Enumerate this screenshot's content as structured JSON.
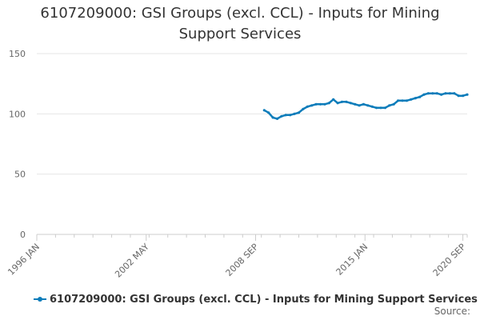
{
  "chart_data": {
    "type": "line",
    "title": "6107209000: GSI Groups (excl. CCL) - Inputs for Mining Support Services",
    "xlabel": "",
    "ylabel": "",
    "x_tick_labels": [
      "1996 JAN",
      "2002 MAY",
      "2008 SEP",
      "2015 JAN",
      "2020 SEP"
    ],
    "y_ticks": [
      0,
      50,
      100,
      150
    ],
    "ylim": [
      0,
      160
    ],
    "xlim": [
      "1996-01",
      "2020-12"
    ],
    "grid": "horizontal",
    "legend_position": "bottom",
    "series": [
      {
        "name": "6107209000: GSI Groups (excl. CCL) - Inputs for Mining Support Services",
        "color": "#0c7cba",
        "x": [
          "2009-03",
          "2009-06",
          "2009-09",
          "2009-12",
          "2010-03",
          "2010-06",
          "2010-09",
          "2010-12",
          "2011-03",
          "2011-06",
          "2011-09",
          "2011-12",
          "2012-03",
          "2012-06",
          "2012-09",
          "2012-12",
          "2013-03",
          "2013-06",
          "2013-09",
          "2013-12",
          "2014-03",
          "2014-06",
          "2014-09",
          "2014-12",
          "2015-03",
          "2015-06",
          "2015-09",
          "2015-12",
          "2016-03",
          "2016-06",
          "2016-09",
          "2016-12",
          "2017-03",
          "2017-06",
          "2017-09",
          "2017-12",
          "2018-03",
          "2018-06",
          "2018-09",
          "2018-12",
          "2019-03",
          "2019-06",
          "2019-09",
          "2019-12",
          "2020-03",
          "2020-06",
          "2020-09",
          "2020-12"
        ],
        "values": [
          103,
          101,
          97,
          96,
          98,
          99,
          99,
          100,
          101,
          104,
          106,
          107,
          108,
          108,
          108,
          109,
          112,
          109,
          110,
          110,
          109,
          108,
          107,
          108,
          107,
          106,
          105,
          105,
          105,
          107,
          108,
          111,
          111,
          111,
          112,
          113,
          114,
          116,
          117,
          117,
          117,
          116,
          117,
          117,
          117,
          115,
          115,
          116
        ]
      }
    ]
  },
  "legend": {
    "label": "6107209000: GSI Groups (excl. CCL) - Inputs for Mining Support Services"
  },
  "footer": {
    "source_label": "Source:"
  }
}
